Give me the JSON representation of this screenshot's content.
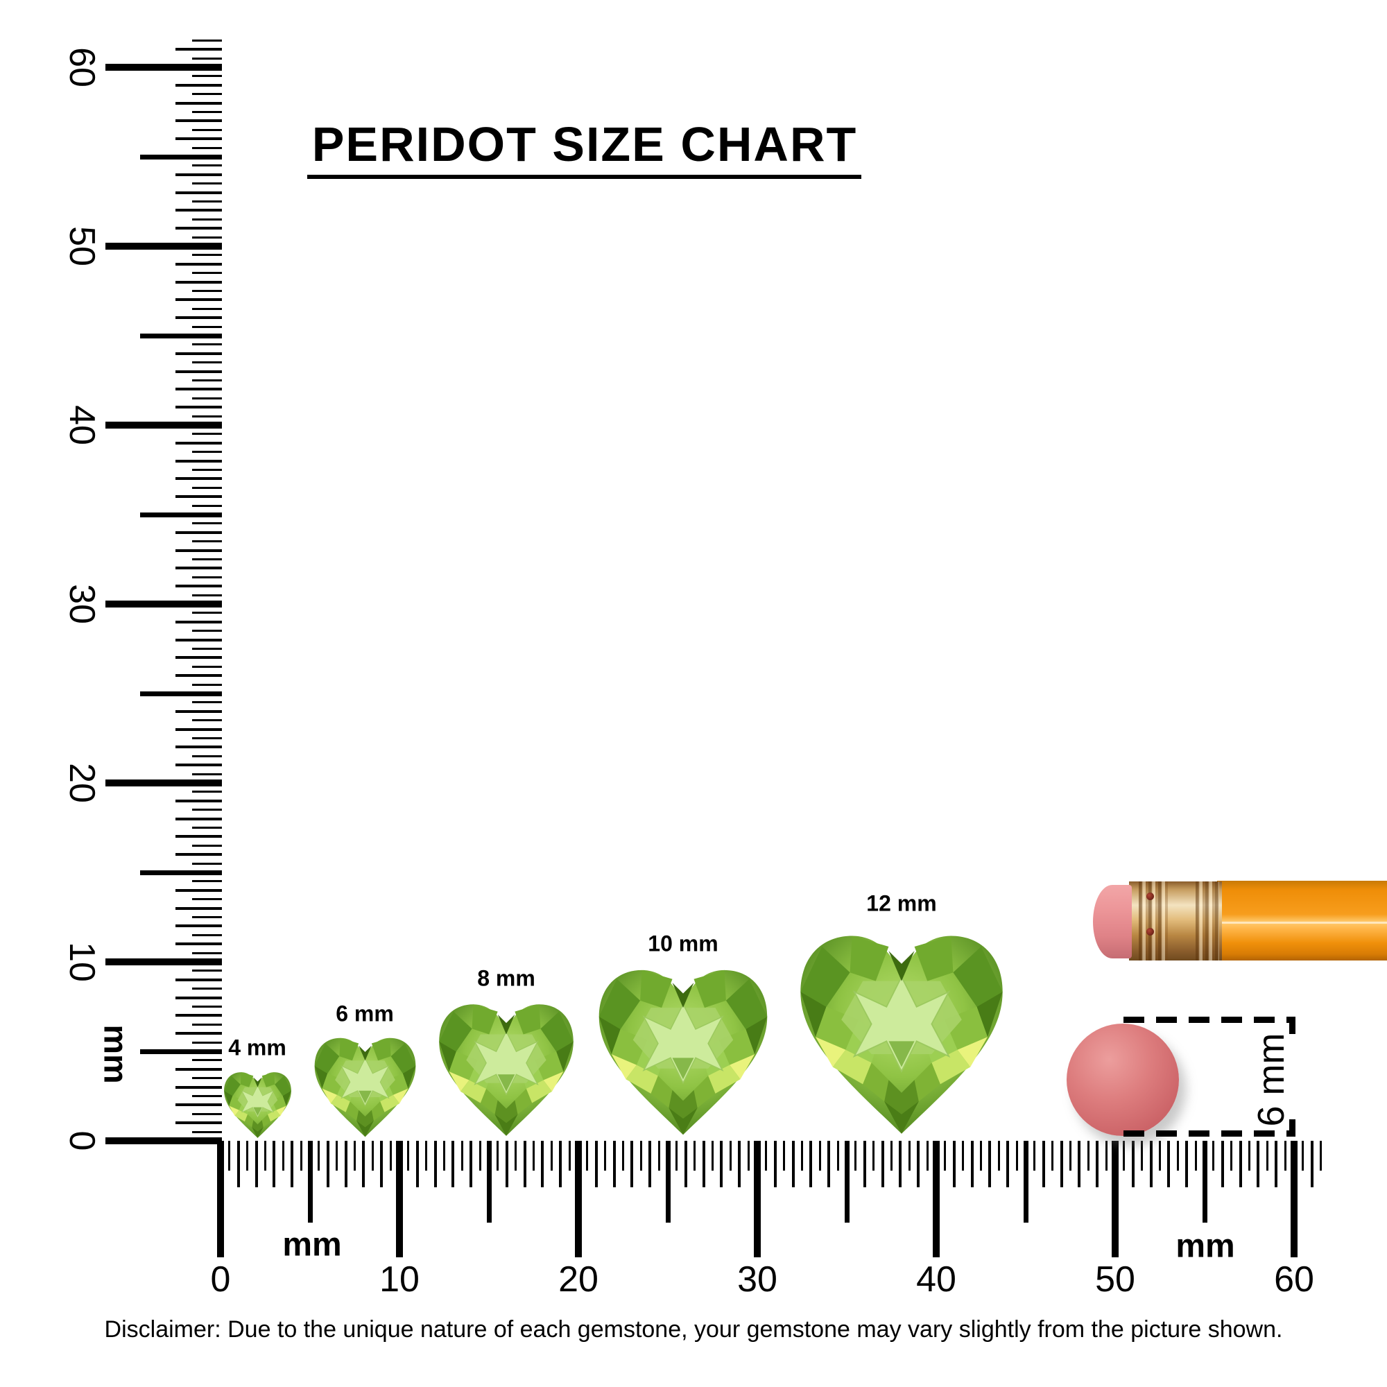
{
  "title": {
    "text": "PERIDOT SIZE CHART"
  },
  "gems": [
    {
      "label": "4 mm",
      "size_mm": 4
    },
    {
      "label": "6 mm",
      "size_mm": 6
    },
    {
      "label": "8 mm",
      "size_mm": 8
    },
    {
      "label": "10 mm",
      "size_mm": 10
    },
    {
      "label": "12 mm",
      "size_mm": 12
    }
  ],
  "rulers": {
    "unit": "mm",
    "left": {
      "labels": [
        "0",
        "10",
        "20",
        "30",
        "40",
        "50",
        "60"
      ],
      "unit_label": "mm",
      "range_mm": [
        0,
        60
      ]
    },
    "bottom": {
      "labels": [
        "0",
        "10",
        "20",
        "30",
        "40",
        "50",
        "60"
      ],
      "unit_labels": [
        "mm",
        "mm"
      ],
      "range_mm": [
        0,
        60
      ]
    }
  },
  "measurement": {
    "label": "6 mm",
    "diameter_mm": 6
  },
  "reference_objects": [
    "pencil",
    "round-eraser-dot"
  ],
  "disclaimer": "Disclaimer: Due to the unique nature of each gemstone, your gemstone may vary slightly from the picture shown.",
  "colors": {
    "ink": "#000000",
    "gem_green": "#8fc344",
    "gem_dark_green": "#4a7d1a",
    "gem_light_green": "#cdeb9c",
    "gem_yellow_glint": "#e9f37c",
    "pencil_orange": "#f79d1d",
    "ferrule_gold": "#e3bd7d",
    "eraser_pink": "#ec9598",
    "eraser_dot_red": "#cc6468"
  }
}
